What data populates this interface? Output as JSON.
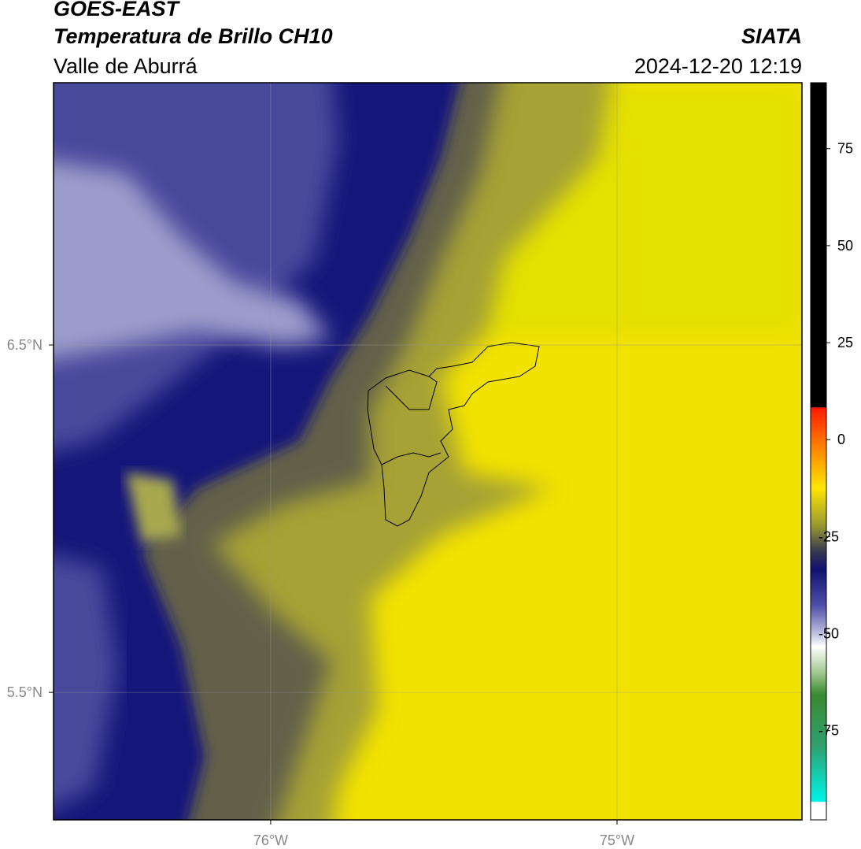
{
  "header": {
    "title": "GOES-EAST",
    "subtitle": "Temperatura de Brillo CH10",
    "region": "Valle de Aburrá",
    "source": "SIATA",
    "datetime": "2024-12-20 12:19"
  },
  "map": {
    "lat_range": [
      5.133,
      7.255
    ],
    "lon_range": [
      -76.627,
      -74.466
    ],
    "lat_ticks": [
      {
        "value": 6.5,
        "label": "6.5°N"
      },
      {
        "value": 5.5,
        "label": "5.5°N"
      }
    ],
    "lon_ticks": [
      {
        "value": -76,
        "label": "76°W"
      },
      {
        "value": -75,
        "label": "75°W"
      }
    ]
  },
  "colorbar": {
    "range": [
      -98,
      92
    ],
    "ticks": [
      75,
      50,
      25,
      0,
      -25,
      -50,
      -75
    ]
  }
}
